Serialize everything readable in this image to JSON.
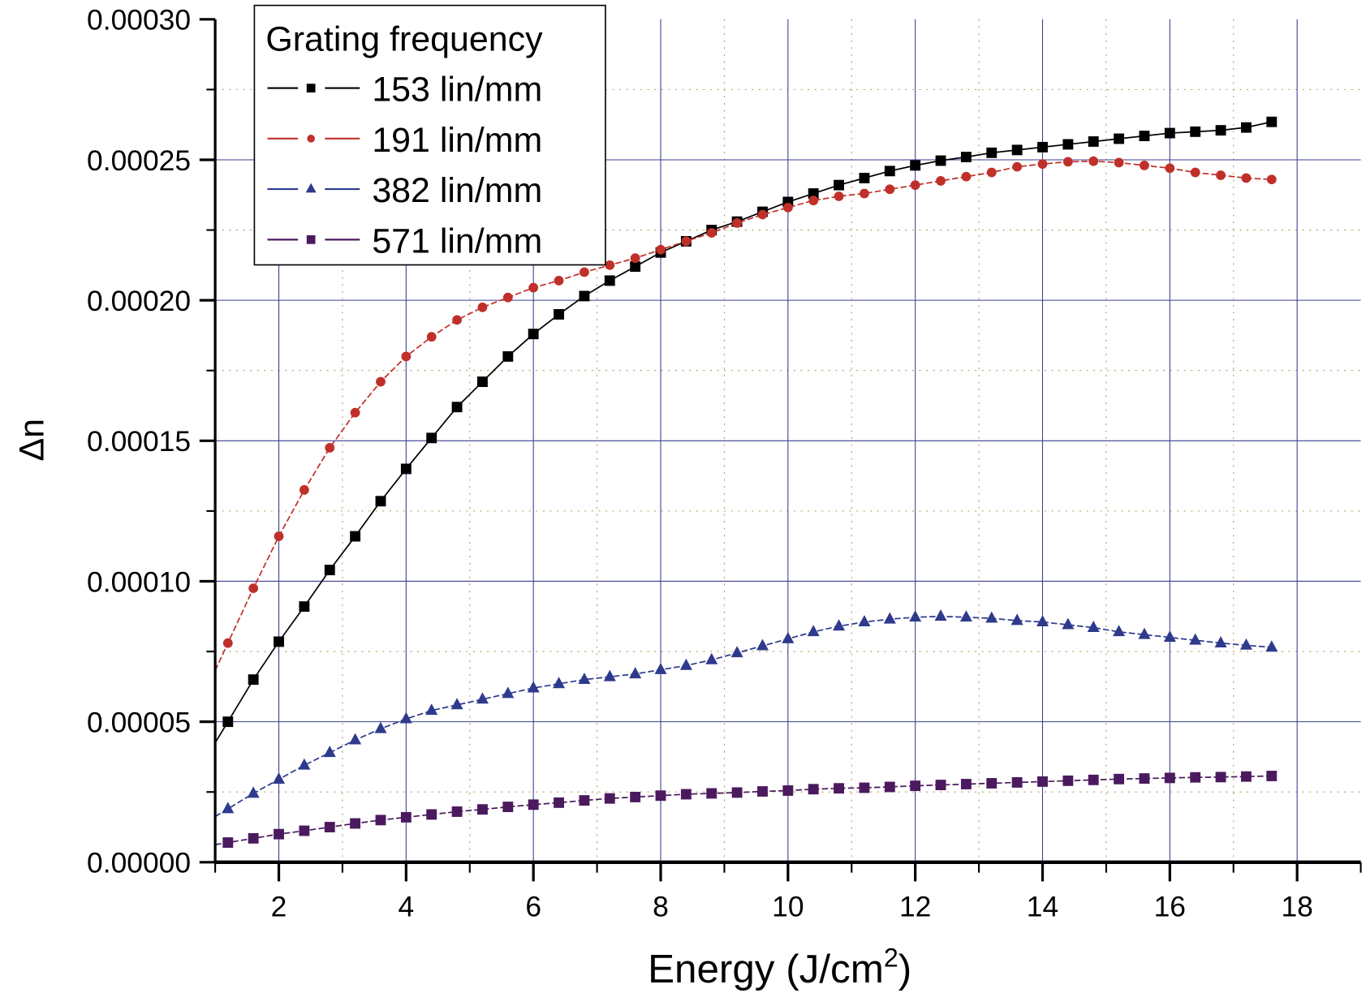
{
  "chart_data": {
    "type": "line",
    "title": "",
    "xlabel": "Energy (J/cm",
    "xlabel_sup": "2",
    "xlabel_close": ")",
    "ylabel": "Δn",
    "xlim": [
      1,
      19
    ],
    "ylim": [
      0,
      0.0003
    ],
    "xticks": [
      2,
      4,
      6,
      8,
      10,
      12,
      14,
      16,
      18
    ],
    "xtick_labels": [
      "2",
      "4",
      "6",
      "8",
      "10",
      "12",
      "14",
      "16",
      "18"
    ],
    "yticks": [
      0,
      5e-05,
      0.0001,
      0.00015,
      0.0002,
      0.00025,
      0.0003
    ],
    "ytick_labels": [
      "0.00000",
      "0.00005",
      "0.00010",
      "0.00015",
      "0.00020",
      "0.00025",
      "0.00030"
    ],
    "grid": true,
    "legend": {
      "title": "Grating frequency",
      "placement": "top-left"
    },
    "x": [
      1.2,
      1.6,
      2.0,
      2.4,
      2.8,
      3.2,
      3.6,
      4.0,
      4.4,
      4.8,
      5.2,
      5.6,
      6.0,
      6.4,
      6.8,
      7.2,
      7.6,
      8.0,
      8.4,
      8.8,
      9.2,
      9.6,
      10.0,
      10.4,
      10.8,
      11.2,
      11.6,
      12.0,
      12.4,
      12.8,
      13.2,
      13.6,
      14.0,
      14.4,
      14.8,
      15.2,
      15.6,
      16.0,
      16.4,
      16.8,
      17.2,
      17.6
    ],
    "series": [
      {
        "name": "153 lin/mm",
        "color": "#000000",
        "marker": "square",
        "values": [
          5e-05,
          6.5e-05,
          7.85e-05,
          9.1e-05,
          0.000104,
          0.000116,
          0.0001285,
          0.00014,
          0.000151,
          0.000162,
          0.000171,
          0.00018,
          0.000188,
          0.000195,
          0.0002015,
          0.000207,
          0.000212,
          0.000217,
          0.000221,
          0.000225,
          0.000228,
          0.0002315,
          0.000235,
          0.000238,
          0.000241,
          0.0002435,
          0.000246,
          0.000248,
          0.0002497,
          0.000251,
          0.0002525,
          0.0002535,
          0.0002545,
          0.0002555,
          0.0002565,
          0.0002575,
          0.0002585,
          0.0002595,
          0.00026,
          0.0002605,
          0.0002615,
          0.0002635
        ]
      },
      {
        "name": "191 lin/mm",
        "color": "#c0302a",
        "marker": "circle",
        "values": [
          7.8e-05,
          9.75e-05,
          0.000116,
          0.0001325,
          0.0001475,
          0.00016,
          0.000171,
          0.00018,
          0.000187,
          0.000193,
          0.0001975,
          0.000201,
          0.0002045,
          0.000207,
          0.00021,
          0.0002125,
          0.000215,
          0.000218,
          0.000221,
          0.000224,
          0.0002275,
          0.0002305,
          0.000233,
          0.0002355,
          0.000237,
          0.000238,
          0.0002395,
          0.000241,
          0.0002425,
          0.000244,
          0.0002455,
          0.0002475,
          0.0002485,
          0.0002493,
          0.0002495,
          0.000249,
          0.000248,
          0.000247,
          0.0002455,
          0.0002445,
          0.0002435,
          0.000243
        ]
      },
      {
        "name": "382 lin/mm",
        "color": "#2e3a8c",
        "marker": "triangle",
        "values": [
          1.9e-05,
          2.45e-05,
          2.95e-05,
          3.45e-05,
          3.9e-05,
          4.35e-05,
          4.75e-05,
          5.1e-05,
          5.4e-05,
          5.6e-05,
          5.8e-05,
          6e-05,
          6.2e-05,
          6.35e-05,
          6.5e-05,
          6.6e-05,
          6.7e-05,
          6.85e-05,
          7e-05,
          7.2e-05,
          7.45e-05,
          7.7e-05,
          7.95e-05,
          8.2e-05,
          8.4e-05,
          8.55e-05,
          8.65e-05,
          8.72e-05,
          8.75e-05,
          8.72e-05,
          8.68e-05,
          8.6e-05,
          8.55e-05,
          8.45e-05,
          8.35e-05,
          8.2e-05,
          8.1e-05,
          8e-05,
          7.9e-05,
          7.8e-05,
          7.72e-05,
          7.65e-05
        ]
      },
      {
        "name": "571 lin/mm",
        "color": "#4b1a5e",
        "marker": "square",
        "values": [
          7e-06,
          8.5e-06,
          1e-05,
          1.12e-05,
          1.25e-05,
          1.38e-05,
          1.5e-05,
          1.6e-05,
          1.7e-05,
          1.8e-05,
          1.88e-05,
          1.97e-05,
          2.05e-05,
          2.12e-05,
          2.2e-05,
          2.27e-05,
          2.32e-05,
          2.37e-05,
          2.42e-05,
          2.45e-05,
          2.48e-05,
          2.52e-05,
          2.55e-05,
          2.6e-05,
          2.63e-05,
          2.65e-05,
          2.68e-05,
          2.72e-05,
          2.75e-05,
          2.78e-05,
          2.81e-05,
          2.84e-05,
          2.87e-05,
          2.9e-05,
          2.93e-05,
          2.96e-05,
          2.98e-05,
          3e-05,
          3.02e-05,
          3.03e-05,
          3.05e-05,
          3.07e-05
        ]
      }
    ]
  }
}
